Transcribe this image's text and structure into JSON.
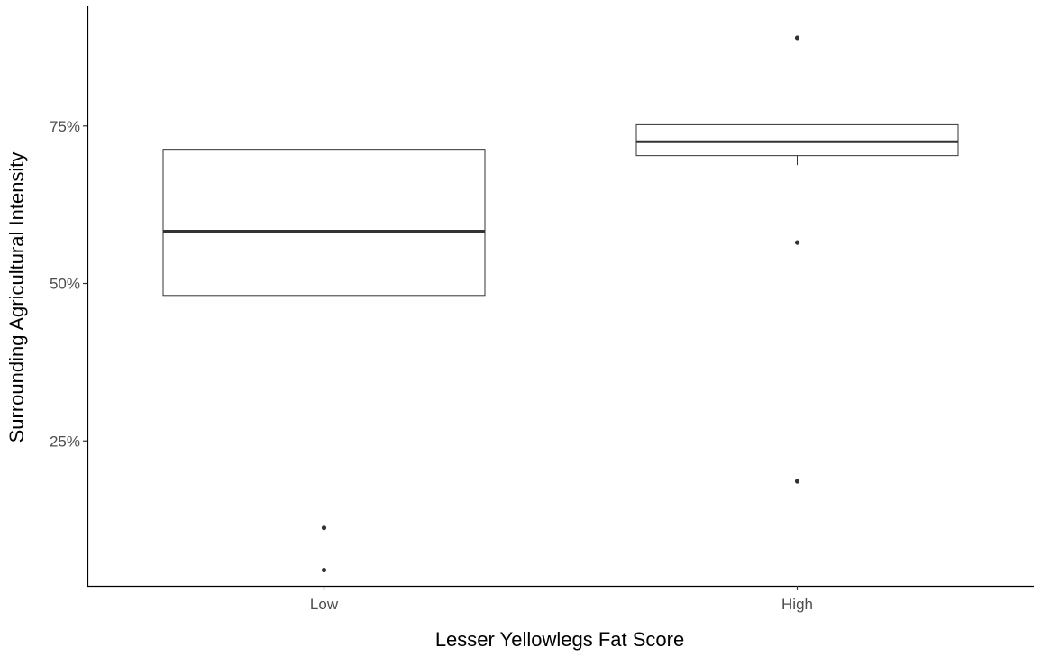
{
  "chart_data": {
    "type": "boxplot",
    "title": "",
    "xlabel": "Lesser Yellowlegs Fat Score",
    "ylabel": "Surrounding Agricultural Intensity",
    "y_tick_labels": [
      "25%",
      "50%",
      "75%"
    ],
    "y_ticks": [
      0.25,
      0.5,
      0.75
    ],
    "ylim": [
      0.02,
      0.94
    ],
    "grid": false,
    "legend": "none",
    "categories": [
      "Low",
      "High"
    ],
    "boxes": [
      {
        "category": "Low",
        "whisker_low": 0.186,
        "q1": 0.481,
        "median": 0.583,
        "q3": 0.713,
        "whisker_high": 0.798,
        "outliers": [
          0.112,
          0.045
        ]
      },
      {
        "category": "High",
        "whisker_low": 0.688,
        "q1": 0.703,
        "median": 0.725,
        "q3": 0.752,
        "whisker_high": 0.752,
        "outliers": [
          0.89,
          0.565,
          0.186
        ]
      }
    ],
    "colors": {
      "box_stroke": "#333333",
      "box_fill": "#ffffff",
      "axis": "#000000",
      "tick_text": "#4d4d4d"
    }
  }
}
